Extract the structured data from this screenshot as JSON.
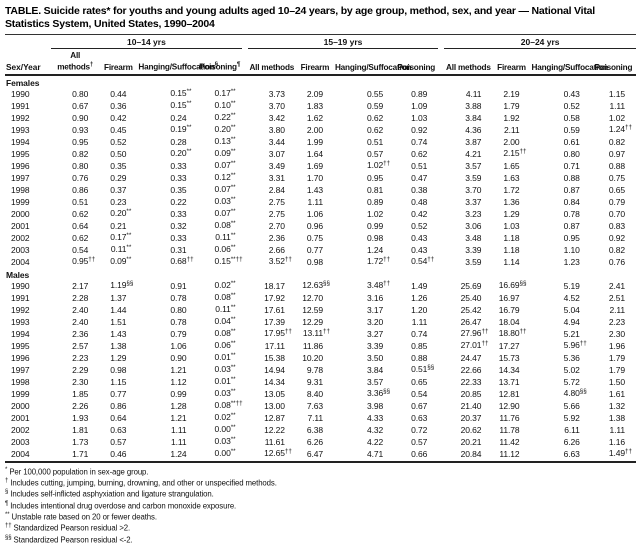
{
  "colors": {
    "background": "#ffffff",
    "text": "#000000",
    "rule": "#222222"
  },
  "title": "TABLE. Suicide rates* for youths and young adults aged 10–24 years, by age group, method, sex, and year — National Vital Statistics System, United States, 1990–2004",
  "table": {
    "corner_header": "Sex/Year",
    "age_groups": [
      "10–14 yrs",
      "15–19 yrs",
      "20–24 yrs"
    ],
    "sub_headers": [
      "All methods",
      "Firearm",
      "Hanging/Suffocation",
      "Poisoning"
    ],
    "sub_header_sups": [
      "†",
      "",
      "§",
      "¶"
    ],
    "sections": [
      {
        "label": "Females",
        "rows": [
          {
            "year": "1990",
            "values": [
              "0.80",
              "0.44",
              "0.15**",
              "0.17**",
              "3.73",
              "2.09",
              "0.55",
              "0.89",
              "4.11",
              "2.19",
              "0.43",
              "1.15"
            ]
          },
          {
            "year": "1991",
            "values": [
              "0.67",
              "0.36",
              "0.15**",
              "0.10**",
              "3.70",
              "1.83",
              "0.59",
              "1.09",
              "3.88",
              "1.79",
              "0.52",
              "1.11"
            ]
          },
          {
            "year": "1992",
            "values": [
              "0.90",
              "0.42",
              "0.24",
              "0.22**",
              "3.42",
              "1.62",
              "0.62",
              "1.03",
              "3.84",
              "1.92",
              "0.58",
              "1.02"
            ]
          },
          {
            "year": "1993",
            "values": [
              "0.93",
              "0.45",
              "0.19**",
              "0.20**",
              "3.80",
              "2.00",
              "0.62",
              "0.92",
              "4.36",
              "2.11",
              "0.59",
              "1.24††"
            ]
          },
          {
            "year": "1994",
            "values": [
              "0.95",
              "0.52",
              "0.28",
              "0.13**",
              "3.44",
              "1.99",
              "0.51",
              "0.74",
              "3.87",
              "2.00",
              "0.61",
              "0.82"
            ]
          },
          {
            "year": "1995",
            "values": [
              "0.82",
              "0.50",
              "0.20**",
              "0.09**",
              "3.07",
              "1.64",
              "0.57",
              "0.62",
              "4.21",
              "2.15††",
              "0.80",
              "0.97"
            ]
          },
          {
            "year": "1996",
            "values": [
              "0.80",
              "0.35",
              "0.33",
              "0.07**",
              "3.49",
              "1.69",
              "1.02††",
              "0.51",
              "3.57",
              "1.65",
              "0.71",
              "0.88"
            ]
          },
          {
            "year": "1997",
            "values": [
              "0.76",
              "0.29",
              "0.33",
              "0.12**",
              "3.31",
              "1.70",
              "0.95",
              "0.47",
              "3.59",
              "1.63",
              "0.88",
              "0.75"
            ]
          },
          {
            "year": "1998",
            "values": [
              "0.86",
              "0.37",
              "0.35",
              "0.07**",
              "2.84",
              "1.43",
              "0.81",
              "0.38",
              "3.70",
              "1.72",
              "0.87",
              "0.65"
            ]
          },
          {
            "year": "1999",
            "values": [
              "0.51",
              "0.23",
              "0.22",
              "0.03**",
              "2.75",
              "1.11",
              "0.89",
              "0.48",
              "3.37",
              "1.36",
              "0.84",
              "0.79"
            ]
          },
          {
            "year": "2000",
            "values": [
              "0.62",
              "0.20**",
              "0.33",
              "0.07**",
              "2.75",
              "1.06",
              "1.02",
              "0.42",
              "3.23",
              "1.29",
              "0.78",
              "0.70"
            ]
          },
          {
            "year": "2001",
            "values": [
              "0.64",
              "0.21",
              "0.32",
              "0.08**",
              "2.70",
              "0.96",
              "0.99",
              "0.52",
              "3.06",
              "1.03",
              "0.87",
              "0.83"
            ]
          },
          {
            "year": "2002",
            "values": [
              "0.62",
              "0.17**",
              "0.33",
              "0.11**",
              "2.36",
              "0.75",
              "0.98",
              "0.43",
              "3.48",
              "1.18",
              "0.95",
              "0.92"
            ]
          },
          {
            "year": "2003",
            "values": [
              "0.54",
              "0.11**",
              "0.31",
              "0.06**",
              "2.66",
              "0.77",
              "1.24",
              "0.43",
              "3.39",
              "1.18",
              "1.10",
              "0.82"
            ]
          },
          {
            "year": "2004",
            "values": [
              "0.95††",
              "0.09**",
              "0.68††",
              "0.15**††",
              "3.52††",
              "0.98",
              "1.72††",
              "0.54††",
              "3.59",
              "1.14",
              "1.23",
              "0.76"
            ]
          }
        ]
      },
      {
        "label": "Males",
        "rows": [
          {
            "year": "1990",
            "values": [
              "2.17",
              "1.19§§",
              "0.91",
              "0.02**",
              "18.17",
              "12.63§§",
              "3.48††",
              "1.49",
              "25.69",
              "16.69§§",
              "5.19",
              "2.41"
            ]
          },
          {
            "year": "1991",
            "values": [
              "2.28",
              "1.37",
              "0.78",
              "0.08**",
              "17.92",
              "12.70",
              "3.16",
              "1.26",
              "25.40",
              "16.97",
              "4.52",
              "2.51"
            ]
          },
          {
            "year": "1992",
            "values": [
              "2.40",
              "1.44",
              "0.80",
              "0.11**",
              "17.61",
              "12.59",
              "3.17",
              "1.20",
              "25.42",
              "16.79",
              "5.04",
              "2.11"
            ]
          },
          {
            "year": "1993",
            "values": [
              "2.40",
              "1.51",
              "0.78",
              "0.04**",
              "17.39",
              "12.29",
              "3.20",
              "1.11",
              "26.47",
              "18.04",
              "4.94",
              "2.23"
            ]
          },
          {
            "year": "1994",
            "values": [
              "2.36",
              "1.43",
              "0.79",
              "0.08**",
              "17.95††",
              "13.11††",
              "3.27",
              "0.74",
              "27.96††",
              "18.80††",
              "5.21",
              "2.30"
            ]
          },
          {
            "year": "1995",
            "values": [
              "2.57",
              "1.38",
              "1.06",
              "0.06**",
              "17.11",
              "11.86",
              "3.39",
              "0.85",
              "27.01††",
              "17.27",
              "5.96††",
              "1.96"
            ]
          },
          {
            "year": "1996",
            "values": [
              "2.23",
              "1.29",
              "0.90",
              "0.01**",
              "15.38",
              "10.20",
              "3.50",
              "0.88",
              "24.47",
              "15.73",
              "5.36",
              "1.79"
            ]
          },
          {
            "year": "1997",
            "values": [
              "2.29",
              "0.98",
              "1.21",
              "0.03**",
              "14.94",
              "9.78",
              "3.84",
              "0.51§§",
              "22.66",
              "14.34",
              "5.02",
              "1.79"
            ]
          },
          {
            "year": "1998",
            "values": [
              "2.30",
              "1.15",
              "1.12",
              "0.01**",
              "14.34",
              "9.31",
              "3.57",
              "0.65",
              "22.33",
              "13.71",
              "5.72",
              "1.50"
            ]
          },
          {
            "year": "1999",
            "values": [
              "1.85",
              "0.77",
              "0.99",
              "0.03**",
              "13.05",
              "8.40",
              "3.36§§",
              "0.54",
              "20.85",
              "12.81",
              "4.80§§",
              "1.61"
            ]
          },
          {
            "year": "2000",
            "values": [
              "2.26",
              "0.86",
              "1.28",
              "0.08**††",
              "13.00",
              "7.63",
              "3.98",
              "0.67",
              "21.40",
              "12.90",
              "5.66",
              "1.32"
            ]
          },
          {
            "year": "2001",
            "values": [
              "1.93",
              "0.64",
              "1.21",
              "0.02**",
              "12.87",
              "7.11",
              "4.33",
              "0.63",
              "20.37",
              "11.76",
              "5.92",
              "1.38"
            ]
          },
          {
            "year": "2002",
            "values": [
              "1.81",
              "0.63",
              "1.11",
              "0.00**",
              "12.22",
              "6.38",
              "4.32",
              "0.72",
              "20.62",
              "11.78",
              "6.11",
              "1.11"
            ]
          },
          {
            "year": "2003",
            "values": [
              "1.73",
              "0.57",
              "1.11",
              "0.03**",
              "11.61",
              "6.26",
              "4.22",
              "0.57",
              "20.21",
              "11.42",
              "6.26",
              "1.16"
            ]
          },
          {
            "year": "2004",
            "values": [
              "1.71",
              "0.46",
              "1.24",
              "0.00**",
              "12.65††",
              "6.47",
              "4.71",
              "0.66",
              "20.84",
              "11.12",
              "6.63",
              "1.49††"
            ]
          }
        ]
      }
    ]
  },
  "footnotes": [
    {
      "mark": "*",
      "text": "Per 100,000 population in sex-age group."
    },
    {
      "mark": "†",
      "text": "Includes cutting, jumping, burning, drowning, and other or unspecified methods."
    },
    {
      "mark": "§",
      "text": "Includes self-inflicted asphyxiation and ligature strangulation."
    },
    {
      "mark": "¶",
      "text": "Includes intentional drug overdose and carbon monoxide exposure."
    },
    {
      "mark": "**",
      "text": "Unstable rate based on 20 or fewer deaths."
    },
    {
      "mark": "††",
      "text": "Standardized Pearson residual >2."
    },
    {
      "mark": "§§",
      "text": "Standardized Pearson residual <-2."
    }
  ]
}
